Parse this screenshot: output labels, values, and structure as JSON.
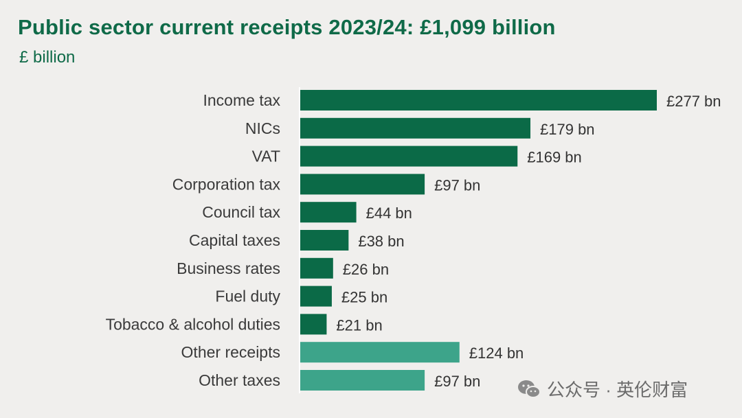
{
  "chart_data": {
    "type": "bar",
    "orientation": "horizontal",
    "title": "Public sector current receipts 2023/24: £1,099 billion",
    "unit_label": "£ billion",
    "categories": [
      "Income tax",
      "NICs",
      "VAT",
      "Corporation tax",
      "Council tax",
      "Capital taxes",
      "Business rates",
      "Fuel duty",
      "Tobacco & alcohol duties",
      "Other receipts",
      "Other taxes"
    ],
    "values": [
      277,
      179,
      169,
      97,
      44,
      38,
      26,
      25,
      21,
      124,
      97
    ],
    "data_labels": [
      "£277 bn",
      "£179 bn",
      "£169 bn",
      "£97 bn",
      "£44 bn",
      "£38 bn",
      "£26 bn",
      "£25 bn",
      "£21 bn",
      "£124 bn",
      "£97 bn"
    ],
    "bar_colors": [
      "#0b6a47",
      "#0b6a47",
      "#0b6a47",
      "#0b6a47",
      "#0b6a47",
      "#0b6a47",
      "#0b6a47",
      "#0b6a47",
      "#0b6a47",
      "#3da48a",
      "#3da48a"
    ],
    "xlim": [
      0,
      277
    ],
    "grid": false,
    "legend": "none"
  },
  "colors": {
    "title": "#0f6a48",
    "axis_line": "#ffffff",
    "category_text": "#3a3a3a",
    "value_text": "#333333"
  },
  "watermark": {
    "text": "公众号 · 英伦财富",
    "icon": "wechat-icon"
  }
}
